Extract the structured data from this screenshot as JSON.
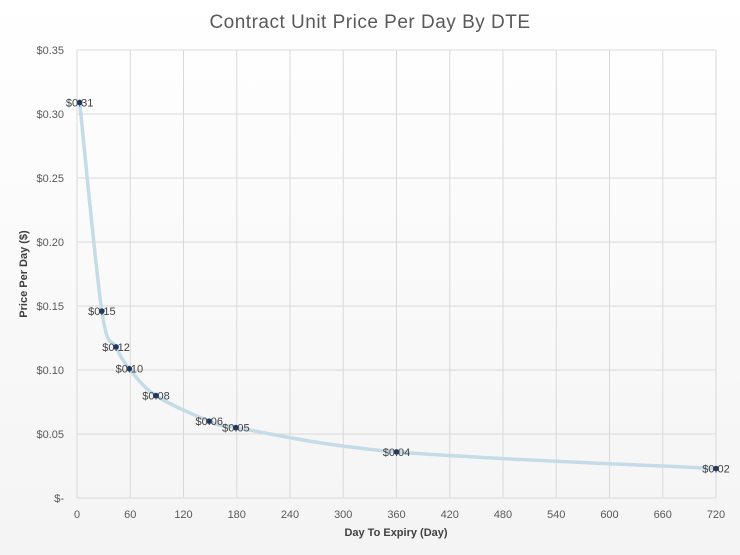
{
  "chart_data": {
    "type": "scatter",
    "title": "Contract Unit Price Per Day By DTE",
    "xlabel": "Day To Expiry (Day)",
    "ylabel": "Price Per Day ($)",
    "xlim": [
      0,
      720
    ],
    "ylim": [
      0,
      0.35
    ],
    "x_ticks": [
      0,
      60,
      120,
      180,
      240,
      300,
      360,
      420,
      480,
      540,
      600,
      660,
      720
    ],
    "x_tick_labels": [
      "0",
      "60",
      "120",
      "180",
      "240",
      "300",
      "360",
      "420",
      "480",
      "540",
      "600",
      "660",
      "720"
    ],
    "y_ticks": [
      0,
      0.05,
      0.1,
      0.15,
      0.2,
      0.25,
      0.3,
      0.35
    ],
    "y_tick_labels": [
      "$-",
      "$0.05",
      "$0.10",
      "$0.15",
      "$0.20",
      "$0.25",
      "$0.30",
      "$0.35"
    ],
    "grid": true,
    "legend": "none",
    "series": [
      {
        "name": "Price Per Day",
        "line_color": "#c5dbe6",
        "marker_color": "#1f3864",
        "points": [
          {
            "x": 3,
            "y": 0.309,
            "label": "$0.31"
          },
          {
            "x": 28,
            "y": 0.146,
            "label": "$0.15"
          },
          {
            "x": 44,
            "y": 0.118,
            "label": "$0.12"
          },
          {
            "x": 59,
            "y": 0.101,
            "label": "$0.10"
          },
          {
            "x": 89,
            "y": 0.08,
            "label": "$0.08"
          },
          {
            "x": 149,
            "y": 0.06,
            "label": "$0.06"
          },
          {
            "x": 179,
            "y": 0.055,
            "label": "$0.05"
          },
          {
            "x": 360,
            "y": 0.036,
            "label": "$0.04"
          },
          {
            "x": 720,
            "y": 0.023,
            "label": "$0.02"
          }
        ]
      }
    ]
  }
}
